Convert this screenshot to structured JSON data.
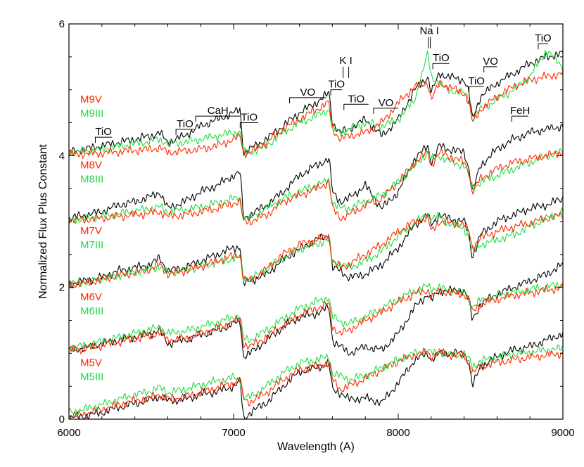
{
  "chart_data": {
    "type": "line",
    "title": "",
    "xlabel": "Wavelength (A)",
    "ylabel": "Normalized Flux Plus Constant",
    "xlim": [
      6000,
      9000
    ],
    "ylim": [
      0,
      6
    ],
    "xticks": [
      6000,
      7000,
      8000,
      9000
    ],
    "yticks": [
      0,
      2,
      4,
      6
    ],
    "grid": false,
    "legend": "none",
    "colors": {
      "dwarf": "#ff2a00",
      "giant": "#22dd44",
      "reference": "#000000"
    },
    "spectral_types": [
      {
        "dwarf": "M5V",
        "giant": "M5III",
        "offset": 0
      },
      {
        "dwarf": "M6V",
        "giant": "M6III",
        "offset": 1
      },
      {
        "dwarf": "M7V",
        "giant": "M7III",
        "offset": 2
      },
      {
        "dwarf": "M8V",
        "giant": "M8III",
        "offset": 3
      },
      {
        "dwarf": "M9V",
        "giant": "M9III",
        "offset": 4
      }
    ],
    "template_x": [
      6000,
      6100,
      6200,
      6300,
      6400,
      6500,
      6550,
      6600,
      6700,
      6800,
      6900,
      7000,
      7040,
      7060,
      7100,
      7200,
      7300,
      7400,
      7500,
      7580,
      7600,
      7650,
      7700,
      7800,
      7900,
      8000,
      8100,
      8180,
      8200,
      8250,
      8300,
      8400,
      8430,
      8450,
      8500,
      8600,
      8700,
      8800,
      8900,
      9000
    ],
    "series": [
      {
        "offset": 0,
        "dwarf": [
          0.05,
          0.08,
          0.15,
          0.22,
          0.28,
          0.33,
          0.38,
          0.3,
          0.34,
          0.4,
          0.48,
          0.55,
          0.6,
          0.3,
          0.26,
          0.4,
          0.6,
          0.75,
          0.8,
          0.85,
          0.6,
          0.45,
          0.5,
          0.62,
          0.75,
          0.88,
          0.98,
          1.02,
          0.95,
          1.02,
          0.98,
          0.96,
          0.88,
          0.7,
          0.8,
          0.86,
          0.9,
          0.94,
          0.97,
          1.0
        ],
        "giant": [
          0.1,
          0.15,
          0.22,
          0.3,
          0.37,
          0.43,
          0.48,
          0.4,
          0.45,
          0.52,
          0.58,
          0.63,
          0.62,
          0.35,
          0.33,
          0.5,
          0.7,
          0.85,
          0.9,
          0.95,
          0.7,
          0.65,
          0.6,
          0.66,
          0.78,
          0.9,
          1.0,
          1.05,
          1.0,
          1.02,
          0.98,
          0.98,
          0.92,
          0.8,
          0.88,
          0.94,
          0.98,
          1.02,
          1.05,
          1.07
        ],
        "reference": [
          0.02,
          0.05,
          0.1,
          0.18,
          0.24,
          0.3,
          0.35,
          0.28,
          0.3,
          0.38,
          0.42,
          0.5,
          0.58,
          0.0,
          0.1,
          0.25,
          0.5,
          0.72,
          0.78,
          0.85,
          0.45,
          0.4,
          0.3,
          0.32,
          0.25,
          0.55,
          0.9,
          1.0,
          0.9,
          1.0,
          1.0,
          1.0,
          0.85,
          0.5,
          0.8,
          0.95,
          1.05,
          1.1,
          1.2,
          1.3
        ]
      },
      {
        "offset": 1,
        "dwarf": [
          1.05,
          1.07,
          1.12,
          1.17,
          1.22,
          1.27,
          1.32,
          1.2,
          1.22,
          1.3,
          1.38,
          1.48,
          1.52,
          1.15,
          1.1,
          1.25,
          1.42,
          1.58,
          1.68,
          1.75,
          1.4,
          1.3,
          1.35,
          1.5,
          1.62,
          1.78,
          1.9,
          1.96,
          1.85,
          1.95,
          1.92,
          1.9,
          1.8,
          1.62,
          1.75,
          1.82,
          1.88,
          1.92,
          1.96,
          2.0
        ],
        "giant": [
          1.08,
          1.12,
          1.18,
          1.24,
          1.3,
          1.36,
          1.4,
          1.3,
          1.33,
          1.4,
          1.47,
          1.55,
          1.55,
          1.22,
          1.2,
          1.35,
          1.52,
          1.68,
          1.78,
          1.85,
          1.55,
          1.48,
          1.45,
          1.55,
          1.68,
          1.82,
          1.95,
          2.02,
          1.98,
          2.0,
          1.95,
          1.92,
          1.84,
          1.7,
          1.8,
          1.88,
          1.92,
          1.97,
          2.01,
          2.04
        ],
        "reference": [
          1.05,
          1.08,
          1.15,
          1.2,
          1.25,
          1.3,
          1.35,
          1.15,
          1.2,
          1.28,
          1.35,
          1.45,
          1.5,
          0.95,
          1.0,
          1.2,
          1.4,
          1.55,
          1.6,
          1.7,
          1.2,
          1.1,
          1.0,
          1.1,
          1.05,
          1.3,
          1.7,
          1.9,
          1.8,
          1.95,
          1.95,
          1.95,
          1.8,
          1.5,
          1.75,
          1.9,
          2.0,
          2.1,
          2.2,
          2.35
        ]
      },
      {
        "offset": 2,
        "dwarf": [
          2.05,
          2.07,
          2.12,
          2.18,
          2.22,
          2.28,
          2.35,
          2.2,
          2.25,
          2.32,
          2.4,
          2.48,
          2.5,
          2.12,
          2.1,
          2.28,
          2.5,
          2.65,
          2.72,
          2.78,
          2.4,
          2.3,
          2.35,
          2.5,
          2.65,
          2.85,
          3.0,
          3.05,
          2.85,
          3.0,
          2.98,
          2.95,
          2.85,
          2.6,
          2.75,
          2.85,
          2.92,
          2.98,
          3.05,
          3.1
        ],
        "giant": [
          2.05,
          2.08,
          2.13,
          2.18,
          2.23,
          2.28,
          2.32,
          2.22,
          2.26,
          2.32,
          2.38,
          2.44,
          2.45,
          2.15,
          2.12,
          2.28,
          2.45,
          2.58,
          2.66,
          2.72,
          2.4,
          2.35,
          2.3,
          2.4,
          2.55,
          2.78,
          2.98,
          3.12,
          3.05,
          3.08,
          2.98,
          2.9,
          2.75,
          2.55,
          2.65,
          2.72,
          2.8,
          2.92,
          3.05,
          3.15
        ],
        "reference": [
          2.05,
          2.1,
          2.15,
          2.25,
          2.3,
          2.35,
          2.45,
          2.25,
          2.3,
          2.4,
          2.5,
          2.6,
          2.62,
          2.05,
          2.1,
          2.2,
          2.42,
          2.58,
          2.72,
          2.8,
          2.3,
          2.25,
          2.15,
          2.2,
          2.35,
          2.6,
          2.95,
          3.1,
          2.95,
          3.1,
          3.05,
          3.0,
          2.8,
          2.45,
          2.8,
          3.0,
          3.1,
          3.2,
          3.25,
          3.35
        ]
      },
      {
        "offset": 3,
        "dwarf": [
          3.02,
          3.03,
          3.05,
          3.08,
          3.1,
          3.13,
          3.15,
          3.08,
          3.1,
          3.15,
          3.2,
          3.28,
          3.3,
          3.0,
          3.0,
          3.1,
          3.3,
          3.4,
          3.5,
          3.6,
          3.2,
          3.05,
          3.1,
          3.25,
          3.35,
          3.6,
          3.9,
          4.05,
          3.85,
          4.05,
          4.0,
          3.9,
          3.75,
          3.45,
          3.65,
          3.8,
          3.9,
          3.95,
          4.0,
          4.05
        ],
        "giant": [
          3.02,
          3.04,
          3.08,
          3.12,
          3.16,
          3.2,
          3.22,
          3.15,
          3.18,
          3.22,
          3.28,
          3.35,
          3.35,
          3.05,
          3.05,
          3.2,
          3.35,
          3.45,
          3.55,
          3.62,
          3.3,
          3.2,
          3.2,
          3.3,
          3.4,
          3.6,
          3.85,
          4.05,
          3.95,
          4.0,
          3.92,
          3.85,
          3.7,
          3.5,
          3.6,
          3.7,
          3.8,
          3.9,
          4.0,
          4.05
        ],
        "reference": [
          3.05,
          3.1,
          3.15,
          3.25,
          3.3,
          3.38,
          3.45,
          3.2,
          3.3,
          3.45,
          3.55,
          3.7,
          3.75,
          3.05,
          3.1,
          3.25,
          3.45,
          3.7,
          3.85,
          3.95,
          3.45,
          3.3,
          3.35,
          3.55,
          3.2,
          3.45,
          3.95,
          4.15,
          3.9,
          4.15,
          4.1,
          4.05,
          3.8,
          3.45,
          3.85,
          4.1,
          4.25,
          4.35,
          4.4,
          4.45
        ]
      },
      {
        "offset": 4,
        "dwarf": [
          4.02,
          4.03,
          4.04,
          4.06,
          4.08,
          4.1,
          4.12,
          4.05,
          4.07,
          4.1,
          4.15,
          4.25,
          4.3,
          4.05,
          4.05,
          4.2,
          4.4,
          4.55,
          4.7,
          4.8,
          4.4,
          4.25,
          4.3,
          4.35,
          4.5,
          4.8,
          5.05,
          5.1,
          4.85,
          5.1,
          5.05,
          4.95,
          4.8,
          4.5,
          4.7,
          4.9,
          5.05,
          5.15,
          5.2,
          5.25
        ],
        "giant": [
          4.05,
          4.07,
          4.1,
          4.14,
          4.18,
          4.22,
          4.25,
          4.18,
          4.2,
          4.25,
          4.3,
          4.35,
          4.35,
          4.05,
          4.05,
          4.15,
          4.35,
          4.5,
          4.6,
          4.7,
          4.4,
          4.35,
          4.4,
          4.5,
          4.45,
          4.55,
          4.85,
          5.55,
          5.2,
          5.1,
          5.0,
          4.95,
          4.85,
          4.55,
          4.7,
          4.85,
          5.0,
          5.2,
          5.6,
          5.35
        ],
        "reference": [
          4.05,
          4.1,
          4.15,
          4.2,
          4.25,
          4.3,
          4.35,
          4.2,
          4.3,
          4.45,
          4.55,
          4.65,
          4.7,
          4.05,
          4.1,
          4.25,
          4.45,
          4.65,
          4.8,
          4.95,
          4.5,
          4.35,
          4.4,
          4.55,
          4.3,
          4.55,
          5.0,
          5.2,
          4.95,
          5.25,
          5.2,
          5.15,
          4.95,
          4.55,
          4.9,
          5.1,
          5.25,
          5.4,
          5.5,
          5.55
        ]
      }
    ],
    "features": [
      {
        "label": "TiO",
        "x0": 6160,
        "x1": 6260,
        "y": 4.28
      },
      {
        "label": "TiO",
        "x0": 6650,
        "x1": 6760,
        "y": 4.4
      },
      {
        "label": "CaH",
        "x0": 6770,
        "x1": 7040,
        "y": 4.6
      },
      {
        "label": "TiO",
        "x0": 7040,
        "x1": 7150,
        "y": 4.5
      },
      {
        "label": "VO",
        "x0": 7340,
        "x1": 7560,
        "y": 4.88
      },
      {
        "label": "TiO",
        "x0": 7590,
        "x1": 7660,
        "y": 5.0
      },
      {
        "label": "TiO",
        "x0": 7670,
        "x1": 7820,
        "y": 4.78
      },
      {
        "label": "VO",
        "x0": 7850,
        "x1": 8000,
        "y": 4.72
      },
      {
        "label": "TiO",
        "x0": 8210,
        "x1": 8310,
        "y": 5.4
      },
      {
        "label": "TiO",
        "x0": 8430,
        "x1": 8520,
        "y": 5.05
      },
      {
        "label": "VO",
        "x0": 8520,
        "x1": 8600,
        "y": 5.35
      },
      {
        "label": "FeH",
        "x0": 8690,
        "x1": 8790,
        "y": 4.6
      },
      {
        "label": "TiO",
        "x0": 8850,
        "x1": 8910,
        "y": 5.7
      }
    ],
    "lines": [
      {
        "label": "K I",
        "x": [
          7665,
          7699
        ],
        "y": 5.35
      },
      {
        "label": "Na I",
        "x": [
          8183,
          8195
        ],
        "y": 5.8
      }
    ]
  }
}
